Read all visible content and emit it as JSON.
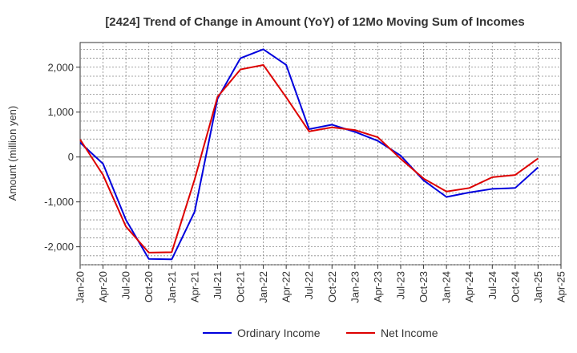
{
  "chart_data": {
    "type": "line",
    "title": "[2424]  Trend of Change in Amount (YoY) of 12Mo Moving Sum of Incomes",
    "xlabel": "",
    "ylabel": "Amount (million yen)",
    "x": [
      "Jan-20",
      "Apr-20",
      "Jul-20",
      "Oct-20",
      "Jan-21",
      "Apr-21",
      "Jul-21",
      "Oct-21",
      "Jan-22",
      "Apr-22",
      "Jul-22",
      "Oct-22",
      "Jan-23",
      "Apr-23",
      "Jul-23",
      "Oct-23",
      "Jan-24",
      "Apr-24",
      "Jul-24",
      "Oct-24",
      "Jan-25",
      "Apr-25"
    ],
    "ylim": [
      -2400,
      2550
    ],
    "yticks": [
      -2000,
      -1000,
      0,
      1000,
      2000
    ],
    "ytick_labels": [
      "-2,000",
      "-1,000",
      "0",
      "1,000",
      "2,000"
    ],
    "grid": true,
    "legend_position": "bottom",
    "series": [
      {
        "name": "Ordinary Income",
        "color": "#0000dd",
        "values": [
          320,
          -150,
          -1400,
          -2270,
          -2280,
          -1220,
          1300,
          2200,
          2400,
          2050,
          620,
          720,
          560,
          360,
          30,
          -520,
          -890,
          -790,
          -710,
          -690,
          -230,
          null
        ]
      },
      {
        "name": "Net Income",
        "color": "#dd0000",
        "values": [
          390,
          -400,
          -1550,
          -2130,
          -2120,
          -500,
          1340,
          1950,
          2050,
          1330,
          570,
          660,
          600,
          440,
          -40,
          -480,
          -770,
          -690,
          -450,
          -400,
          -30,
          null
        ]
      }
    ]
  }
}
